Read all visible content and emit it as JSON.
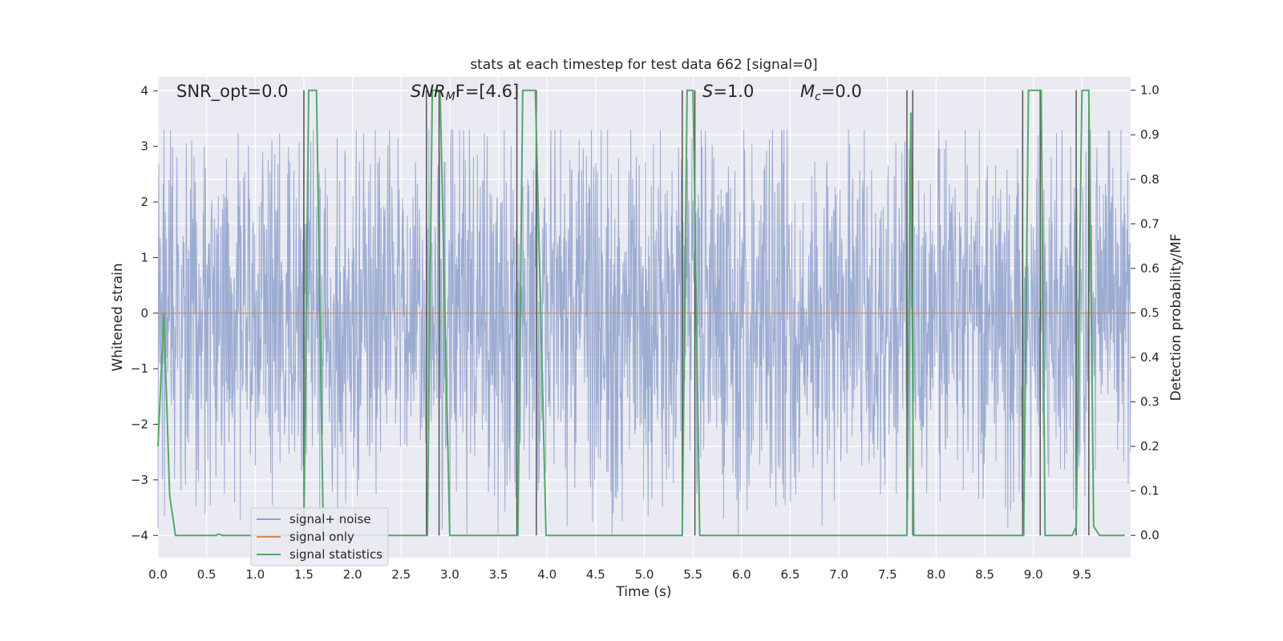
{
  "chart_data": {
    "type": "line",
    "title": "stats at each timestep for test data 662 [signal=0]",
    "xlabel": "Time (s)",
    "ylabel": "Whitened strain",
    "ylabel_right": "Detection probability/MF",
    "xlim": [
      0,
      10
    ],
    "ylim": [
      -4.4,
      4.25
    ],
    "ylim_right": [
      -0.05,
      1.03
    ],
    "x_ticks": [
      "0.0",
      "0.5",
      "1.0",
      "1.5",
      "2.0",
      "2.5",
      "3.0",
      "3.5",
      "4.0",
      "4.5",
      "5.0",
      "5.5",
      "6.0",
      "6.5",
      "7.0",
      "7.5",
      "8.0",
      "8.5",
      "9.0",
      "9.5"
    ],
    "y_ticks": [
      "4",
      "3",
      "2",
      "1",
      "0",
      "−1",
      "−2",
      "−3",
      "−4"
    ],
    "y_ticks_right": [
      "1.0",
      "0.9",
      "0.8",
      "0.7",
      "0.6",
      "0.5",
      "0.4",
      "0.3",
      "0.2",
      "0.1",
      "0.0"
    ],
    "grid": true,
    "legend_position": "lower-left",
    "annotations": {
      "snr_opt": "SNR_opt=0.0",
      "snr_mf_italic": "SNR",
      "snr_mf_sub": "M",
      "snr_mf_rest": "F=[4.6]",
      "s_italic": "S",
      "s_rest": "=1.0",
      "mc_italic": "M",
      "mc_sub": "c",
      "mc_rest": "=0.0"
    },
    "series": [
      {
        "name": "signal+ noise",
        "color": "#8da0cb",
        "description_range": [
          -4.0,
          3.3
        ],
        "typical_amplitude": 1.6
      },
      {
        "name": "signal only",
        "color": "#dd8452",
        "x": [
          0,
          10
        ],
        "y": [
          0,
          0
        ]
      },
      {
        "name": "signal statistics",
        "color": "#55a868",
        "axis": "right",
        "x": [
          0.0,
          0.06,
          0.12,
          0.18,
          0.6,
          0.62,
          0.64,
          0.66,
          1.5,
          1.55,
          1.63,
          1.7,
          2.77,
          2.82,
          2.9,
          3.0,
          3.7,
          3.75,
          3.88,
          3.99,
          5.39,
          5.44,
          5.5,
          5.57,
          7.7,
          7.74,
          7.77,
          7.82,
          8.9,
          8.95,
          9.08,
          9.12,
          9.4,
          9.44,
          9.5,
          9.57,
          9.62,
          9.68,
          9.94
        ],
        "y": [
          0.2,
          0.5,
          0.09,
          0.0,
          0.0,
          0.003,
          0.002,
          0.0,
          0.0,
          1.0,
          1.0,
          0.0,
          0.0,
          1.0,
          1.0,
          0.0,
          0.0,
          1.0,
          1.0,
          0.0,
          0.0,
          1.0,
          1.0,
          0.0,
          0.0,
          0.95,
          0.0,
          0.0,
          0.0,
          1.0,
          1.0,
          0.0,
          0.0,
          0.02,
          1.0,
          1.0,
          0.02,
          0.0,
          0.0
        ]
      }
    ],
    "vertical_markers_x": [
      1.5,
      2.76,
      2.89,
      3.69,
      3.89,
      5.39,
      5.52,
      7.7,
      7.76,
      8.89,
      9.07,
      9.44,
      9.57
    ]
  }
}
